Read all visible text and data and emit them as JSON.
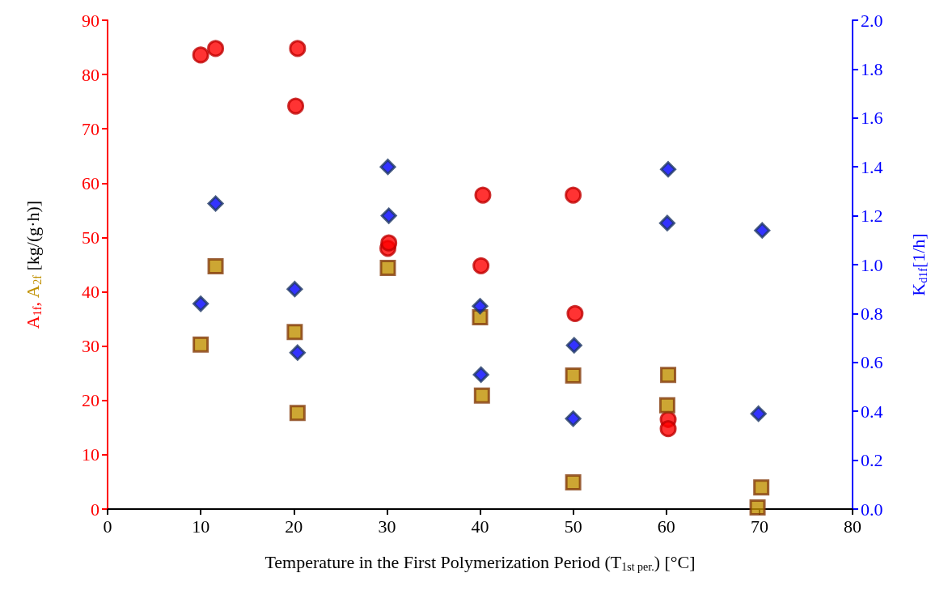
{
  "chart_data": {
    "type": "scatter",
    "xlabel": "Temperature in the First Polymerization Period (T$_{1st per.}$) [°C]",
    "ylabel": "A$_{1f}$, A$_{2f}$ [kg/(g·h)]",
    "y2label": "K$_{d1f}$[1/h]",
    "xlim": [
      0,
      80
    ],
    "xticks": [
      0,
      10,
      20,
      30,
      40,
      50,
      60,
      70,
      80
    ],
    "ylim": [
      0,
      90
    ],
    "yticks": [
      0,
      10,
      20,
      30,
      40,
      50,
      60,
      70,
      80,
      90
    ],
    "y2lim": [
      0,
      2
    ],
    "y2ticks": [
      {
        "value": 0,
        "label": "0.0"
      },
      0.2,
      0.4,
      0.6,
      0.8,
      {
        "value": 1,
        "label": "1.0"
      },
      1.2,
      1.4,
      1.6,
      1.8,
      {
        "value": 2,
        "label": "2.0"
      }
    ],
    "series": [
      {
        "color": "#ff0000",
        "marker": "circle",
        "x": [
          10.0,
          11.6,
          20.4,
          20.2,
          30.1,
          30.2,
          40.3,
          40.1,
          50.0,
          50.2,
          60.2,
          60.2
        ],
        "values": [
          83.6,
          84.8,
          84.8,
          74.2,
          48.0,
          49.0,
          57.8,
          44.8,
          57.8,
          36.0,
          16.5,
          14.8
        ]
      },
      {
        "color": "#c09000",
        "marker": "square",
        "x": [
          10.0,
          11.6,
          20.1,
          20.4,
          30.1,
          40.0,
          40.2,
          50.0,
          50.0,
          60.2,
          60.1,
          70.2,
          69.8
        ],
        "values": [
          30.3,
          44.7,
          32.6,
          17.7,
          44.4,
          35.3,
          20.9,
          24.6,
          4.9,
          24.7,
          19.1,
          4.0,
          0.3
        ]
      },
      {
        "color": "#0000ff",
        "marker": "diamond",
        "axis": "y2",
        "x": [
          10.0,
          11.6,
          20.1,
          20.4,
          30.1,
          30.2,
          40.0,
          40.1,
          50.1,
          50.0,
          60.2,
          60.1,
          70.3,
          69.9
        ],
        "values": [
          0.84,
          1.25,
          0.9,
          0.64,
          1.4,
          1.2,
          0.83,
          0.55,
          0.67,
          0.37,
          1.39,
          1.17,
          1.14,
          0.39
        ]
      }
    ]
  }
}
